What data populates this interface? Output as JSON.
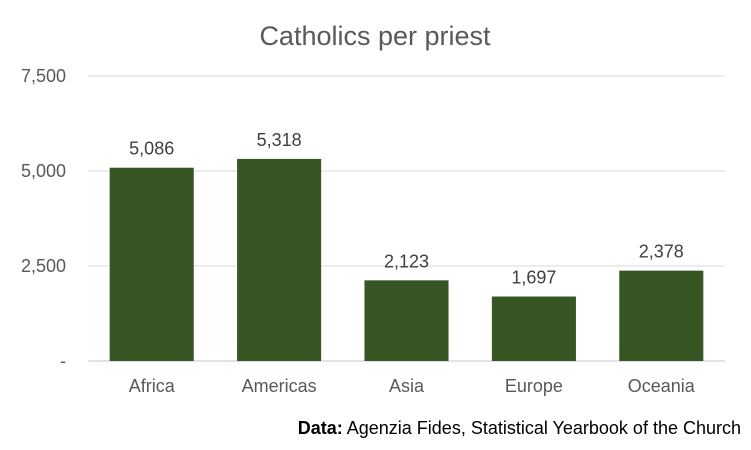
{
  "chart_data": {
    "type": "bar",
    "title": "Catholics per priest",
    "categories": [
      "Africa",
      "Americas",
      "Asia",
      "Europe",
      "Oceania"
    ],
    "values": [
      5086,
      5318,
      2123,
      1697,
      2378
    ],
    "value_labels": [
      "5,086",
      "5,318",
      "2,123",
      "1,697",
      "2,378"
    ],
    "ylim": [
      0,
      7500
    ],
    "yticks": [
      0,
      2500,
      5000,
      7500
    ],
    "ytick_labels": [
      "-",
      "2,500",
      "5,000",
      "7,500"
    ],
    "xlabel": "",
    "ylabel": "",
    "grid": true,
    "legend": "none",
    "bar_color": "#375623"
  },
  "source": {
    "label": "Data:",
    "text": " Agenzia Fides, Statistical Yearbook of the Church"
  }
}
